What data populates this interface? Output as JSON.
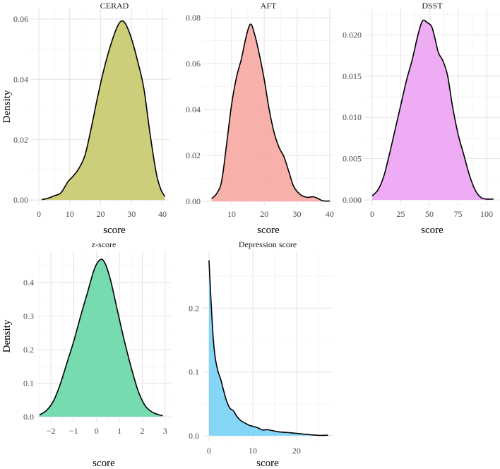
{
  "chart_data": [
    {
      "type": "area",
      "title": "CERAD",
      "xlabel": "score",
      "ylabel": "Density",
      "xlim": [
        -2.5,
        42.3
      ],
      "ylim": [
        -0.0016,
        0.0635
      ],
      "xticks": [
        0,
        10,
        20,
        30,
        40
      ],
      "xtick_labels": [
        "0",
        "10",
        "20",
        "30",
        "40"
      ],
      "yticks": [
        0,
        0.02,
        0.04,
        0.06
      ],
      "ytick_labels": [
        "0.00",
        "0.02",
        "0.04",
        "0.06"
      ],
      "fill": "#c9cb72",
      "x": [
        1,
        3,
        5,
        7,
        8.5,
        9.5,
        11,
        13,
        15,
        17,
        19,
        21,
        23,
        25,
        26.5,
        28,
        30,
        32,
        34,
        36,
        38,
        39.5,
        40.8
      ],
      "y": [
        0.0001,
        0.0006,
        0.0014,
        0.0022,
        0.0045,
        0.0062,
        0.0078,
        0.0105,
        0.015,
        0.024,
        0.034,
        0.043,
        0.0505,
        0.0565,
        0.0592,
        0.0585,
        0.0535,
        0.046,
        0.037,
        0.022,
        0.009,
        0.0035,
        0.0012
      ]
    },
    {
      "type": "area",
      "title": "AFT",
      "xlabel": "score",
      "ylabel": "",
      "xlim": [
        1.4,
        41.1
      ],
      "ylim": [
        -0.0015,
        0.084
      ],
      "xticks": [
        10,
        20,
        30,
        40
      ],
      "xtick_labels": [
        "10",
        "20",
        "30",
        "40"
      ],
      "yticks": [
        0,
        0.02,
        0.04,
        0.06,
        0.08
      ],
      "ytick_labels": [
        "0.00",
        "0.02",
        "0.04",
        "0.06",
        "0.08"
      ],
      "fill": "#f8aca6",
      "x": [
        3.9,
        5.5,
        7,
        8.5,
        10,
        11.5,
        13,
        14.5,
        15.8,
        17,
        18.5,
        20,
        21.5,
        23,
        24.5,
        26,
        27.5,
        29,
        31,
        33,
        35,
        36.5,
        38,
        40
      ],
      "y": [
        0.0012,
        0.0035,
        0.009,
        0.025,
        0.042,
        0.054,
        0.062,
        0.072,
        0.0772,
        0.073,
        0.064,
        0.053,
        0.04,
        0.03,
        0.0235,
        0.0195,
        0.013,
        0.0065,
        0.003,
        0.0018,
        0.002,
        0.0012,
        0.0002,
        0.0002
      ]
    },
    {
      "type": "area",
      "title": "DSST",
      "xlabel": "score",
      "ylabel": "",
      "xlim": [
        -6.8,
        111.7
      ],
      "ylim": [
        -0.0006,
        0.0232
      ],
      "xticks": [
        0,
        25,
        50,
        75,
        100
      ],
      "xtick_labels": [
        "0",
        "25",
        "50",
        "75",
        "100"
      ],
      "yticks": [
        0,
        0.005,
        0.01,
        0.015,
        0.02
      ],
      "ytick_labels": [
        "0.000",
        "0.005",
        "0.010",
        "0.015",
        "0.020"
      ],
      "fill": "#eda8f3",
      "x": [
        0,
        5,
        10,
        15,
        20,
        25,
        30,
        35,
        40,
        44,
        48,
        52,
        55,
        58,
        62,
        66,
        70,
        75,
        80,
        85,
        90,
        95,
        100,
        106
      ],
      "y": [
        0.0005,
        0.0012,
        0.0028,
        0.0055,
        0.0085,
        0.0115,
        0.0145,
        0.017,
        0.02,
        0.0217,
        0.0215,
        0.021,
        0.0195,
        0.0178,
        0.0168,
        0.015,
        0.0115,
        0.008,
        0.0055,
        0.003,
        0.0012,
        0.0003,
        0.0001,
        0.0001
      ]
    },
    {
      "type": "area",
      "title": "z-score",
      "xlabel": "score",
      "ylabel": "Density",
      "xlim": [
        -2.62,
        3.25
      ],
      "ylim": [
        -0.015,
        0.495
      ],
      "xticks": [
        -2,
        -1,
        0,
        1,
        2,
        3
      ],
      "xtick_labels": [
        "−2",
        "−1",
        "0",
        "1",
        "2",
        "3"
      ],
      "yticks": [
        0,
        0.1,
        0.2,
        0.3,
        0.4
      ],
      "ytick_labels": [
        "0.0",
        "0.1",
        "0.2",
        "0.3",
        "0.4"
      ],
      "fill": "#6fd9ab",
      "x": [
        -2.5,
        -2.2,
        -1.9,
        -1.6,
        -1.3,
        -1.0,
        -0.7,
        -0.4,
        -0.1,
        0.15,
        0.35,
        0.6,
        0.9,
        1.2,
        1.5,
        1.8,
        2.1,
        2.4,
        2.7,
        2.9
      ],
      "y": [
        0.005,
        0.018,
        0.045,
        0.095,
        0.16,
        0.225,
        0.3,
        0.37,
        0.44,
        0.468,
        0.46,
        0.41,
        0.32,
        0.23,
        0.15,
        0.08,
        0.035,
        0.015,
        0.006,
        0.003
      ]
    },
    {
      "type": "area",
      "title": "Depression score",
      "xlabel": "score",
      "ylabel": "",
      "xlim": [
        -1.6,
        28.4
      ],
      "ylim": [
        -0.009,
        0.29
      ],
      "xticks": [
        0,
        10,
        20
      ],
      "xtick_labels": [
        "0",
        "10",
        "20"
      ],
      "yticks": [
        0,
        0.1,
        0.2
      ],
      "ytick_labels": [
        "0.0",
        "0.1",
        "0.2"
      ],
      "fill": "#7dd3f6",
      "x": [
        0,
        0.4,
        0.8,
        1.2,
        1.6,
        2.1,
        2.7,
        3.3,
        4,
        4.8,
        5.6,
        6.3,
        7.2,
        8.2,
        9.3,
        10.5,
        11.3,
        12.2,
        13.3,
        14.5,
        16,
        18,
        19.5,
        21,
        22.5,
        24,
        25.5,
        27.2
      ],
      "y": [
        0.275,
        0.22,
        0.17,
        0.135,
        0.115,
        0.1,
        0.088,
        0.072,
        0.055,
        0.043,
        0.039,
        0.031,
        0.024,
        0.02,
        0.016,
        0.014,
        0.012,
        0.009,
        0.0095,
        0.008,
        0.006,
        0.005,
        0.004,
        0.003,
        0.002,
        0.001,
        0.0005,
        0.0008
      ]
    }
  ]
}
